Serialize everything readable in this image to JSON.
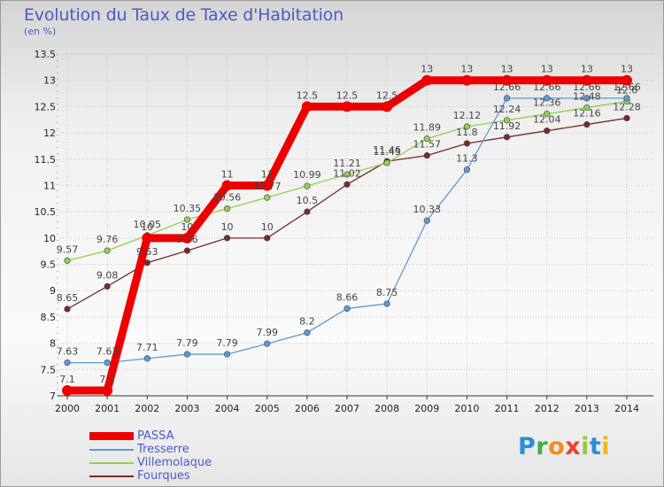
{
  "title": "Evolution du Taux de Taxe d'Habitation",
  "subtitle": "(en %)",
  "logo": {
    "text": "Proxiti",
    "letters": [
      {
        "ch": "P",
        "color": "#2a8fd6"
      },
      {
        "ch": "r",
        "color": "#3fae49"
      },
      {
        "ch": "o",
        "color": "#f28c1e"
      },
      {
        "ch": "x",
        "color": "#e8422f"
      },
      {
        "ch": "i",
        "color": "#9bc53d"
      },
      {
        "ch": "t",
        "color": "#2a8fd6"
      },
      {
        "ch": "i",
        "color": "#f2b81e"
      }
    ]
  },
  "chart_data": {
    "type": "line",
    "title": "Evolution du Taux de Taxe d'Habitation",
    "ylabel": "(en %)",
    "xlabel": "",
    "x": [
      "2000",
      "2001",
      "2002",
      "2003",
      "2004",
      "2005",
      "2006",
      "2007",
      "2008",
      "2009",
      "2010",
      "2011",
      "2012",
      "2013",
      "2014"
    ],
    "ylim": [
      7,
      13.5
    ],
    "yticks": [
      7,
      7.5,
      8,
      8.5,
      9,
      9.5,
      10,
      10.5,
      11,
      11.5,
      12,
      12.5,
      13,
      13.5
    ],
    "grid": true,
    "legend_position": "bottom-left",
    "series": [
      {
        "name": "Fourques",
        "color": "#7a2a2a",
        "width": 1.3,
        "values": [
          8.65,
          9.08,
          9.53,
          9.76,
          10,
          10,
          10.5,
          11.02,
          11.46,
          11.57,
          11.8,
          11.92,
          12.04,
          12.16,
          12.28
        ],
        "labels": [
          "8.65",
          "9.08",
          "9.53",
          "9.76",
          "10",
          "10",
          "10.5",
          "11.02",
          "11.46",
          "11.57",
          "11.8",
          "11.92",
          "12.04",
          "12.16",
          "12.28"
        ]
      },
      {
        "name": "Villemolaque",
        "color": "#8fd14f",
        "width": 1.3,
        "values": [
          9.57,
          9.76,
          10.05,
          10.35,
          10.56,
          10.77,
          10.99,
          11.21,
          11.43,
          11.89,
          12.12,
          12.24,
          12.36,
          12.48,
          12.6
        ],
        "labels": [
          "9.57",
          "9.76",
          "10.05",
          "10.35",
          "10.56",
          "10.77",
          "10.99",
          "11.21",
          "11.43",
          "11.89",
          "12.12",
          "12.24",
          "12.36",
          "12.48",
          "12.6"
        ]
      },
      {
        "name": "Tresserre",
        "color": "#5b9bd5",
        "width": 1.3,
        "values": [
          7.63,
          7.63,
          7.71,
          7.79,
          7.79,
          7.99,
          8.2,
          8.66,
          8.75,
          10.33,
          11.3,
          12.66,
          12.66,
          12.66,
          12.66
        ],
        "labels": [
          "7.63",
          "7.63",
          "7.71",
          "7.79",
          "7.79",
          "7.99",
          "8.2",
          "8.66",
          "8.75",
          "10.33",
          "11.3",
          "12.66",
          "12.66",
          "12.66",
          "12.66"
        ]
      },
      {
        "name": "PASSA",
        "color": "#ee0000",
        "width": 9,
        "values": [
          7.1,
          7.1,
          10,
          10,
          11,
          11,
          12.5,
          12.5,
          12.5,
          13,
          13,
          13,
          13,
          13,
          13
        ],
        "labels": [
          "7.1",
          "7.1",
          "10",
          "10",
          "11",
          "11",
          "12.5",
          "12.5",
          "12.5",
          "13",
          "13",
          "13",
          "13",
          "13",
          "13"
        ]
      }
    ],
    "legend": [
      "PASSA",
      "Tresserre",
      "Villemolaque",
      "Fourques"
    ]
  }
}
